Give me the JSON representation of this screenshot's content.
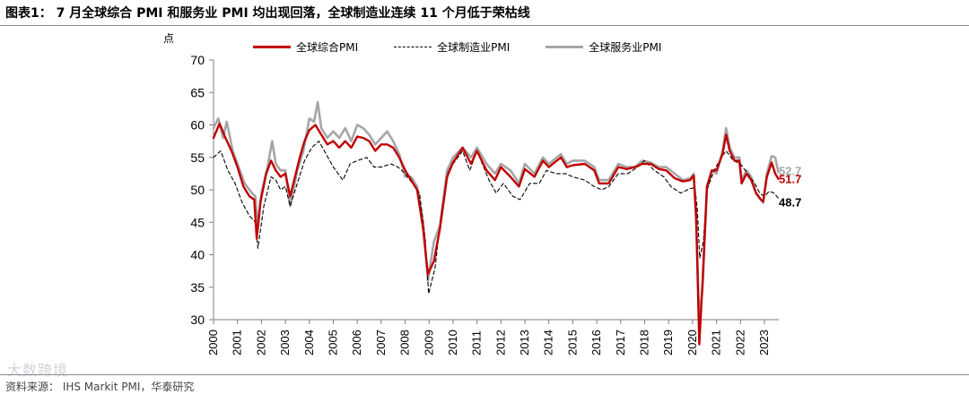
{
  "title": "图表1：  7 月全球综合 PMI 和服务业 PMI 均出现回落，全球制造业连续 11 个月低于荣枯线",
  "source": "资料来源：  IHS Markit PMI，华泰研究",
  "watermark": "大数跨境",
  "chart_data": {
    "type": "line",
    "ylabel": "点",
    "ylim": [
      30,
      70
    ],
    "yticks": [
      30,
      35,
      40,
      45,
      50,
      55,
      60,
      65,
      70
    ],
    "xlim": [
      2000,
      2023.6
    ],
    "xticks": [
      "2000",
      "2001",
      "2002",
      "2003",
      "2004",
      "2005",
      "2006",
      "2007",
      "2008",
      "2009",
      "2010",
      "2011",
      "2012",
      "2013",
      "2014",
      "2015",
      "2016",
      "2017",
      "2018",
      "2019",
      "2020",
      "2021",
      "2022",
      "2023"
    ],
    "grid": false,
    "legend_position": "top",
    "series": [
      {
        "name": "全球综合PMI",
        "color": "#c00000",
        "end_label": "51.7",
        "points": [
          [
            2000.0,
            58
          ],
          [
            2000.25,
            60.2
          ],
          [
            2000.5,
            58
          ],
          [
            2000.75,
            56
          ],
          [
            2001.0,
            53.5
          ],
          [
            2001.25,
            50.5
          ],
          [
            2001.5,
            49
          ],
          [
            2001.7,
            48.5
          ],
          [
            2001.8,
            42.5
          ],
          [
            2001.95,
            48
          ],
          [
            2002.2,
            52.5
          ],
          [
            2002.4,
            54.5
          ],
          [
            2002.6,
            53
          ],
          [
            2002.8,
            52
          ],
          [
            2003.0,
            52.5
          ],
          [
            2003.2,
            49
          ],
          [
            2003.4,
            52
          ],
          [
            2003.6,
            55
          ],
          [
            2003.8,
            57.5
          ],
          [
            2004.0,
            59.2
          ],
          [
            2004.25,
            60
          ],
          [
            2004.5,
            58.5
          ],
          [
            2004.75,
            57
          ],
          [
            2005.0,
            57.5
          ],
          [
            2005.25,
            56.5
          ],
          [
            2005.5,
            57.5
          ],
          [
            2005.75,
            56.5
          ],
          [
            2006.0,
            58.2
          ],
          [
            2006.25,
            58
          ],
          [
            2006.5,
            57.5
          ],
          [
            2006.75,
            56
          ],
          [
            2007.0,
            57
          ],
          [
            2007.25,
            57
          ],
          [
            2007.5,
            56.5
          ],
          [
            2007.75,
            55
          ],
          [
            2008.0,
            53
          ],
          [
            2008.25,
            51.5
          ],
          [
            2008.5,
            50
          ],
          [
            2008.75,
            44
          ],
          [
            2008.95,
            37
          ],
          [
            2009.2,
            39
          ],
          [
            2009.45,
            44
          ],
          [
            2009.75,
            52
          ],
          [
            2010.0,
            54.2
          ],
          [
            2010.4,
            56.5
          ],
          [
            2010.75,
            54
          ],
          [
            2011.0,
            56
          ],
          [
            2011.4,
            53
          ],
          [
            2011.75,
            51.5
          ],
          [
            2012.0,
            53.5
          ],
          [
            2012.4,
            52
          ],
          [
            2012.75,
            50.5
          ],
          [
            2013.0,
            53.2
          ],
          [
            2013.4,
            52
          ],
          [
            2013.75,
            54.5
          ],
          [
            2014.0,
            53.5
          ],
          [
            2014.5,
            55
          ],
          [
            2014.75,
            53.5
          ],
          [
            2015.0,
            53.8
          ],
          [
            2015.5,
            54
          ],
          [
            2015.9,
            53
          ],
          [
            2016.1,
            51
          ],
          [
            2016.5,
            51
          ],
          [
            2016.9,
            53.5
          ],
          [
            2017.25,
            53.2
          ],
          [
            2017.6,
            53.5
          ],
          [
            2017.9,
            54
          ],
          [
            2018.25,
            54
          ],
          [
            2018.6,
            53.2
          ],
          [
            2018.9,
            53
          ],
          [
            2019.25,
            51.8
          ],
          [
            2019.6,
            51.3
          ],
          [
            2019.9,
            51.5
          ],
          [
            2020.05,
            52.2
          ],
          [
            2020.15,
            46
          ],
          [
            2020.28,
            26.2
          ],
          [
            2020.42,
            36
          ],
          [
            2020.6,
            50.5
          ],
          [
            2020.8,
            53
          ],
          [
            2021.0,
            53
          ],
          [
            2021.25,
            55.5
          ],
          [
            2021.4,
            58.5
          ],
          [
            2021.55,
            56
          ],
          [
            2021.75,
            54.5
          ],
          [
            2021.95,
            54.5
          ],
          [
            2022.05,
            51
          ],
          [
            2022.25,
            52.5
          ],
          [
            2022.45,
            51.5
          ],
          [
            2022.65,
            49.5
          ],
          [
            2022.85,
            48.5
          ],
          [
            2022.95,
            48.2
          ],
          [
            2023.1,
            52
          ],
          [
            2023.3,
            54.2
          ],
          [
            2023.45,
            52.5
          ],
          [
            2023.58,
            51.7
          ]
        ]
      },
      {
        "name": "全球制造业PMI",
        "color": "#000000",
        "end_label": "48.7",
        "points": [
          [
            2000.0,
            55
          ],
          [
            2000.3,
            56
          ],
          [
            2000.6,
            53
          ],
          [
            2000.9,
            51
          ],
          [
            2001.2,
            48
          ],
          [
            2001.5,
            46
          ],
          [
            2001.75,
            45
          ],
          [
            2001.85,
            41
          ],
          [
            2002.1,
            47.5
          ],
          [
            2002.4,
            52
          ],
          [
            2002.6,
            51.5
          ],
          [
            2002.8,
            50
          ],
          [
            2003.0,
            50.5
          ],
          [
            2003.2,
            47.5
          ],
          [
            2003.5,
            51
          ],
          [
            2003.8,
            54.5
          ],
          [
            2004.1,
            56.5
          ],
          [
            2004.4,
            57.5
          ],
          [
            2004.7,
            55.5
          ],
          [
            2005.0,
            53.5
          ],
          [
            2005.4,
            51.5
          ],
          [
            2005.7,
            54
          ],
          [
            2006.0,
            54.5
          ],
          [
            2006.4,
            55
          ],
          [
            2006.7,
            53.5
          ],
          [
            2007.0,
            53.5
          ],
          [
            2007.4,
            54
          ],
          [
            2007.7,
            53.5
          ],
          [
            2008.0,
            52.5
          ],
          [
            2008.3,
            51
          ],
          [
            2008.6,
            49.5
          ],
          [
            2008.85,
            42
          ],
          [
            2008.98,
            34
          ],
          [
            2009.25,
            38
          ],
          [
            2009.5,
            46
          ],
          [
            2009.8,
            53
          ],
          [
            2010.1,
            54.5
          ],
          [
            2010.4,
            56
          ],
          [
            2010.7,
            53
          ],
          [
            2011.0,
            56
          ],
          [
            2011.5,
            51.5
          ],
          [
            2011.8,
            49.5
          ],
          [
            2012.1,
            51
          ],
          [
            2012.5,
            49
          ],
          [
            2012.8,
            48.5
          ],
          [
            2013.2,
            51
          ],
          [
            2013.6,
            51
          ],
          [
            2013.9,
            53
          ],
          [
            2014.3,
            52.5
          ],
          [
            2014.7,
            52.5
          ],
          [
            2015.0,
            52
          ],
          [
            2015.5,
            51.5
          ],
          [
            2015.9,
            50.5
          ],
          [
            2016.2,
            50
          ],
          [
            2016.5,
            50.5
          ],
          [
            2016.9,
            52.5
          ],
          [
            2017.3,
            52.5
          ],
          [
            2017.7,
            53.5
          ],
          [
            2018.0,
            54.5
          ],
          [
            2018.4,
            53
          ],
          [
            2018.8,
            52
          ],
          [
            2019.1,
            50.5
          ],
          [
            2019.5,
            49.5
          ],
          [
            2019.9,
            50.2
          ],
          [
            2020.1,
            50.3
          ],
          [
            2020.2,
            47
          ],
          [
            2020.3,
            39.5
          ],
          [
            2020.45,
            42
          ],
          [
            2020.6,
            50
          ],
          [
            2020.9,
            53
          ],
          [
            2021.2,
            55
          ],
          [
            2021.4,
            56
          ],
          [
            2021.7,
            54.5
          ],
          [
            2022.0,
            54
          ],
          [
            2022.3,
            52.5
          ],
          [
            2022.6,
            51
          ],
          [
            2022.8,
            49.5
          ],
          [
            2023.0,
            49
          ],
          [
            2023.2,
            49.8
          ],
          [
            2023.4,
            49.5
          ],
          [
            2023.58,
            48.7
          ]
        ]
      },
      {
        "name": "全球服务业PMI",
        "color": "#a6a6a6",
        "end_label": "52.7",
        "points": [
          [
            2000.0,
            59.5
          ],
          [
            2000.2,
            61
          ],
          [
            2000.4,
            58
          ],
          [
            2000.55,
            60.5
          ],
          [
            2000.8,
            56
          ],
          [
            2001.0,
            54
          ],
          [
            2001.3,
            51
          ],
          [
            2001.6,
            49.5
          ],
          [
            2001.75,
            49
          ],
          [
            2001.85,
            44
          ],
          [
            2002.0,
            49.5
          ],
          [
            2002.25,
            53.5
          ],
          [
            2002.45,
            57.5
          ],
          [
            2002.6,
            54
          ],
          [
            2002.8,
            53
          ],
          [
            2003.0,
            53
          ],
          [
            2003.2,
            47.5
          ],
          [
            2003.5,
            53
          ],
          [
            2003.75,
            56
          ],
          [
            2004.0,
            61
          ],
          [
            2004.2,
            60.5
          ],
          [
            2004.35,
            63.5
          ],
          [
            2004.5,
            59.5
          ],
          [
            2004.75,
            58
          ],
          [
            2005.0,
            59
          ],
          [
            2005.25,
            58
          ],
          [
            2005.5,
            59.5
          ],
          [
            2005.75,
            57.5
          ],
          [
            2006.0,
            60
          ],
          [
            2006.25,
            59.5
          ],
          [
            2006.5,
            58.5
          ],
          [
            2006.75,
            57
          ],
          [
            2007.0,
            58
          ],
          [
            2007.25,
            59
          ],
          [
            2007.5,
            57.5
          ],
          [
            2007.75,
            55.5
          ],
          [
            2008.0,
            52
          ],
          [
            2008.25,
            52
          ],
          [
            2008.5,
            50.5
          ],
          [
            2008.75,
            45
          ],
          [
            2008.95,
            36
          ],
          [
            2009.2,
            42
          ],
          [
            2009.45,
            44.5
          ],
          [
            2009.75,
            53
          ],
          [
            2010.0,
            55
          ],
          [
            2010.4,
            56.5
          ],
          [
            2010.75,
            55
          ],
          [
            2011.0,
            56.5
          ],
          [
            2011.4,
            54
          ],
          [
            2011.75,
            52.5
          ],
          [
            2012.0,
            54
          ],
          [
            2012.4,
            53
          ],
          [
            2012.75,
            51
          ],
          [
            2013.0,
            54
          ],
          [
            2013.4,
            52.5
          ],
          [
            2013.75,
            55
          ],
          [
            2014.0,
            54
          ],
          [
            2014.5,
            55.5
          ],
          [
            2014.75,
            54
          ],
          [
            2015.0,
            54.5
          ],
          [
            2015.5,
            54.5
          ],
          [
            2015.9,
            53.5
          ],
          [
            2016.1,
            51.5
          ],
          [
            2016.5,
            51.5
          ],
          [
            2016.9,
            54
          ],
          [
            2017.25,
            53.5
          ],
          [
            2017.6,
            53.5
          ],
          [
            2017.9,
            54.5
          ],
          [
            2018.25,
            54.2
          ],
          [
            2018.6,
            53.5
          ],
          [
            2018.9,
            53.5
          ],
          [
            2019.25,
            52.5
          ],
          [
            2019.6,
            51.5
          ],
          [
            2019.9,
            51.8
          ],
          [
            2020.05,
            52.5
          ],
          [
            2020.15,
            45
          ],
          [
            2020.28,
            30
          ],
          [
            2020.42,
            35
          ],
          [
            2020.6,
            50
          ],
          [
            2020.8,
            53
          ],
          [
            2021.0,
            52.5
          ],
          [
            2021.25,
            56
          ],
          [
            2021.4,
            59.5
          ],
          [
            2021.55,
            56.5
          ],
          [
            2021.75,
            55
          ],
          [
            2021.95,
            55
          ],
          [
            2022.05,
            51.5
          ],
          [
            2022.25,
            53
          ],
          [
            2022.45,
            52
          ],
          [
            2022.65,
            49.5
          ],
          [
            2022.85,
            48.5
          ],
          [
            2022.95,
            48
          ],
          [
            2023.1,
            52.5
          ],
          [
            2023.3,
            55.2
          ],
          [
            2023.45,
            55
          ],
          [
            2023.58,
            52.7
          ]
        ]
      }
    ]
  }
}
